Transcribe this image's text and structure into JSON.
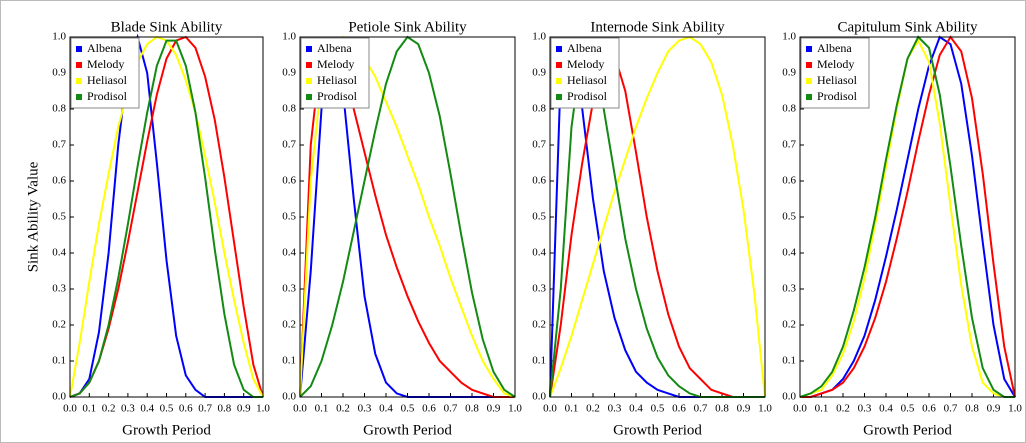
{
  "chart_data": [
    {
      "type": "line",
      "title": "Blade Sink Ability",
      "xlabel": "Growth Period",
      "ylabel": "Sink Ability Value",
      "legend": "upper left",
      "x": [
        0,
        0.05,
        0.1,
        0.15,
        0.2,
        0.25,
        0.3,
        0.35,
        0.4,
        0.45,
        0.5,
        0.55,
        0.6,
        0.65,
        0.7,
        0.75,
        0.8,
        0.85,
        0.9,
        0.95,
        1
      ],
      "xlim": [
        0,
        1
      ],
      "ylim": [
        0,
        1
      ],
      "xticks": [
        {
          "value": 0,
          "label": "0.0"
        },
        0.1,
        0.2,
        0.3,
        0.4,
        0.5,
        0.6,
        0.7,
        0.8,
        0.9,
        {
          "value": 1,
          "label": "1.0"
        }
      ],
      "yticks": [
        {
          "value": 0,
          "label": "0.0"
        },
        0.1,
        0.2,
        0.3,
        0.4,
        0.5,
        0.6,
        0.7,
        0.8,
        0.9,
        {
          "value": 1,
          "label": "1.0"
        }
      ],
      "series": [
        {
          "name": "Albena",
          "color": "#0000ff",
          "values": [
            0,
            0.01,
            0.05,
            0.18,
            0.4,
            0.7,
            0.92,
            1.0,
            0.9,
            0.65,
            0.38,
            0.17,
            0.06,
            0.02,
            0,
            0,
            0,
            0,
            0,
            0,
            0
          ]
        },
        {
          "name": "Melody",
          "color": "#ff0000",
          "values": [
            0,
            0.01,
            0.04,
            0.1,
            0.19,
            0.3,
            0.43,
            0.57,
            0.71,
            0.84,
            0.94,
            0.99,
            1.0,
            0.97,
            0.89,
            0.77,
            0.61,
            0.43,
            0.25,
            0.09,
            0
          ]
        },
        {
          "name": "Heliasol",
          "color": "#ffff00",
          "values": [
            0,
            0.15,
            0.32,
            0.48,
            0.62,
            0.75,
            0.85,
            0.93,
            0.98,
            1.0,
            0.99,
            0.95,
            0.88,
            0.79,
            0.67,
            0.54,
            0.4,
            0.27,
            0.15,
            0.05,
            0
          ]
        },
        {
          "name": "Prodisol",
          "color": "#138a13",
          "values": [
            0,
            0.01,
            0.04,
            0.1,
            0.2,
            0.33,
            0.48,
            0.64,
            0.79,
            0.92,
            0.99,
            0.99,
            0.92,
            0.79,
            0.61,
            0.41,
            0.23,
            0.09,
            0.02,
            0,
            0
          ]
        }
      ]
    },
    {
      "type": "line",
      "title": "Petiole Sink Ability",
      "xlabel": "Growth Period",
      "legend": "upper left",
      "x": [
        0,
        0.05,
        0.1,
        0.15,
        0.2,
        0.25,
        0.3,
        0.35,
        0.4,
        0.45,
        0.5,
        0.55,
        0.6,
        0.65,
        0.7,
        0.75,
        0.8,
        0.85,
        0.9,
        0.95,
        1
      ],
      "xlim": [
        0,
        1
      ],
      "ylim": [
        0,
        1
      ],
      "xticks": [
        {
          "value": 0,
          "label": "0.0"
        },
        0.1,
        0.2,
        0.3,
        0.4,
        0.5,
        0.6,
        0.7,
        0.8,
        0.9,
        {
          "value": 1,
          "label": "1.0"
        }
      ],
      "yticks": [
        {
          "value": 0,
          "label": "0.0"
        },
        0.1,
        0.2,
        0.3,
        0.4,
        0.5,
        0.6,
        0.7,
        0.8,
        0.9,
        {
          "value": 1,
          "label": "1.0"
        }
      ],
      "series": [
        {
          "name": "Albena",
          "color": "#0000ff",
          "values": [
            0,
            0.35,
            0.8,
            1.0,
            0.85,
            0.55,
            0.28,
            0.12,
            0.04,
            0.01,
            0,
            0,
            0,
            0,
            0,
            0,
            0,
            0,
            0,
            0,
            0
          ]
        },
        {
          "name": "Melody",
          "color": "#ff0000",
          "values": [
            0,
            0.7,
            0.97,
            0.99,
            0.92,
            0.8,
            0.68,
            0.56,
            0.45,
            0.36,
            0.28,
            0.21,
            0.15,
            0.1,
            0.07,
            0.04,
            0.02,
            0.01,
            0,
            0,
            0
          ]
        },
        {
          "name": "Heliasol",
          "color": "#ffff00",
          "values": [
            0,
            0.6,
            0.88,
            0.98,
            1.0,
            0.98,
            0.94,
            0.89,
            0.82,
            0.75,
            0.67,
            0.59,
            0.5,
            0.42,
            0.33,
            0.25,
            0.17,
            0.1,
            0.05,
            0.01,
            0
          ]
        },
        {
          "name": "Prodisol",
          "color": "#138a13",
          "values": [
            0,
            0.03,
            0.1,
            0.2,
            0.32,
            0.46,
            0.6,
            0.74,
            0.87,
            0.96,
            1.0,
            0.98,
            0.9,
            0.78,
            0.62,
            0.45,
            0.29,
            0.16,
            0.07,
            0.02,
            0
          ]
        }
      ]
    },
    {
      "type": "line",
      "title": "Internode Sink Ability",
      "xlabel": "Growth Period",
      "legend": "upper left",
      "x": [
        0,
        0.05,
        0.1,
        0.15,
        0.2,
        0.25,
        0.3,
        0.35,
        0.4,
        0.45,
        0.5,
        0.55,
        0.6,
        0.65,
        0.7,
        0.75,
        0.8,
        0.85,
        0.9,
        0.95,
        1
      ],
      "xlim": [
        0,
        1
      ],
      "ylim": [
        0,
        1
      ],
      "xticks": [
        {
          "value": 0,
          "label": "0.0"
        },
        0.1,
        0.2,
        0.3,
        0.4,
        0.5,
        0.6,
        0.7,
        0.8,
        0.9,
        {
          "value": 1,
          "label": "1.0"
        }
      ],
      "yticks": [
        {
          "value": 0,
          "label": "0.0"
        },
        0.1,
        0.2,
        0.3,
        0.4,
        0.5,
        0.6,
        0.7,
        0.8,
        0.9,
        {
          "value": 1,
          "label": "1.0"
        }
      ],
      "series": [
        {
          "name": "Albena",
          "color": "#0000ff",
          "values": [
            0,
            0.9,
            0.97,
            0.8,
            0.55,
            0.35,
            0.22,
            0.13,
            0.07,
            0.04,
            0.02,
            0.01,
            0,
            0,
            0,
            0,
            0,
            0,
            0,
            0,
            0
          ]
        },
        {
          "name": "Melody",
          "color": "#ff0000",
          "values": [
            0,
            0.2,
            0.45,
            0.65,
            0.82,
            0.93,
            0.95,
            0.85,
            0.68,
            0.5,
            0.35,
            0.23,
            0.14,
            0.08,
            0.05,
            0.02,
            0.01,
            0,
            0,
            0,
            0
          ]
        },
        {
          "name": "Heliasol",
          "color": "#ffff00",
          "values": [
            0,
            0.08,
            0.17,
            0.27,
            0.37,
            0.47,
            0.57,
            0.66,
            0.75,
            0.83,
            0.9,
            0.96,
            0.99,
            1.0,
            0.98,
            0.93,
            0.84,
            0.7,
            0.52,
            0.29,
            0
          ]
        },
        {
          "name": "Prodisol",
          "color": "#138a13",
          "values": [
            0,
            0.3,
            0.75,
            0.97,
            0.95,
            0.8,
            0.62,
            0.44,
            0.3,
            0.19,
            0.11,
            0.06,
            0.03,
            0.01,
            0,
            0,
            0,
            0,
            0,
            0,
            0
          ]
        }
      ]
    },
    {
      "type": "line",
      "title": "Capitulum Sink Ability",
      "xlabel": "Growth Period",
      "legend": "upper left",
      "x": [
        0,
        0.05,
        0.1,
        0.15,
        0.2,
        0.25,
        0.3,
        0.35,
        0.4,
        0.45,
        0.5,
        0.55,
        0.6,
        0.65,
        0.7,
        0.75,
        0.8,
        0.85,
        0.9,
        0.95,
        1
      ],
      "xlim": [
        0,
        1
      ],
      "ylim": [
        0,
        1
      ],
      "xticks": [
        {
          "value": 0,
          "label": "0.0"
        },
        0.1,
        0.2,
        0.3,
        0.4,
        0.5,
        0.6,
        0.7,
        0.8,
        0.9,
        {
          "value": 1,
          "label": "1.0"
        }
      ],
      "yticks": [
        {
          "value": 0,
          "label": "0.0"
        },
        0.1,
        0.2,
        0.3,
        0.4,
        0.5,
        0.6,
        0.7,
        0.8,
        0.9,
        {
          "value": 1,
          "label": "1.0"
        }
      ],
      "series": [
        {
          "name": "Albena",
          "color": "#0000ff",
          "values": [
            0,
            0,
            0.01,
            0.02,
            0.05,
            0.1,
            0.17,
            0.27,
            0.39,
            0.52,
            0.66,
            0.8,
            0.92,
            1.0,
            0.98,
            0.87,
            0.67,
            0.43,
            0.2,
            0.05,
            0
          ]
        },
        {
          "name": "Melody",
          "color": "#ff0000",
          "values": [
            0,
            0,
            0.01,
            0.02,
            0.04,
            0.08,
            0.14,
            0.22,
            0.32,
            0.44,
            0.57,
            0.71,
            0.84,
            0.95,
            1.0,
            0.96,
            0.83,
            0.62,
            0.37,
            0.14,
            0
          ]
        },
        {
          "name": "Heliasol",
          "color": "#ffff00",
          "values": [
            0,
            0.01,
            0.02,
            0.06,
            0.12,
            0.21,
            0.33,
            0.48,
            0.64,
            0.8,
            0.94,
            0.99,
            0.93,
            0.76,
            0.53,
            0.31,
            0.14,
            0.04,
            0.01,
            0,
            0
          ]
        },
        {
          "name": "Prodisol",
          "color": "#138a13",
          "values": [
            0,
            0.01,
            0.03,
            0.07,
            0.14,
            0.24,
            0.36,
            0.5,
            0.66,
            0.81,
            0.94,
            1.0,
            0.97,
            0.84,
            0.64,
            0.42,
            0.22,
            0.08,
            0.02,
            0,
            0
          ]
        }
      ]
    }
  ]
}
